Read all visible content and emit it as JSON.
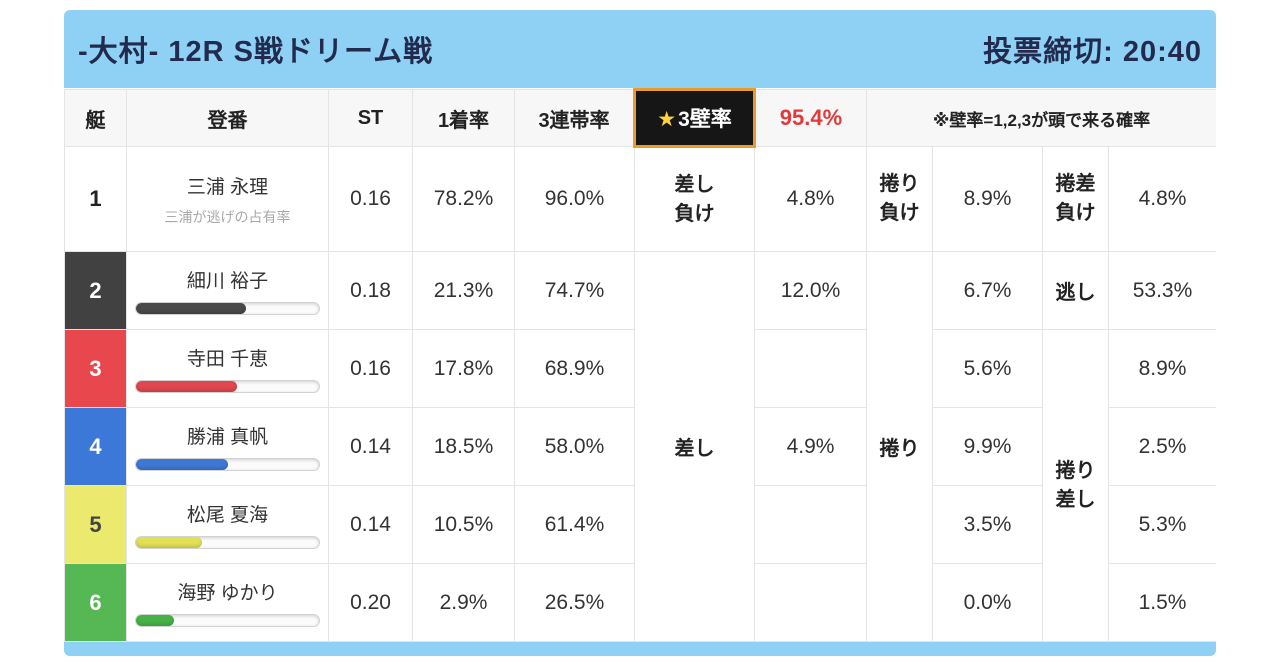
{
  "header": {
    "title": "-大村- 12R S戦ドリーム戦",
    "deadline": "投票締切: 20:40"
  },
  "colors": {
    "card_blue": "#8fd0f5",
    "wall_chip_border": "#e89c2c",
    "wall_chip_bg": "#161616",
    "wall_value_red": "#e03a3a",
    "header_text": "#222b4e"
  },
  "table_header": {
    "boat": "艇",
    "entry": "登番",
    "st": "ST",
    "win": "1着率",
    "top3": "3連帯率",
    "wall_star": "★",
    "wall": "3壁率",
    "wall_value": "95.4%",
    "note": "※壁率=1,2,3が頭で来る確率"
  },
  "merged": {
    "sashi": "差し",
    "makuri": "捲り",
    "makurizashi": "捲り\n差し"
  },
  "rows": [
    {
      "boat": "1",
      "boat_bg": "#ffffff",
      "boat_fg": "#222222",
      "name": "三浦 永理",
      "subtext": "三浦が逃げの占有率",
      "st": "0.16",
      "win": "78.2%",
      "top3": "96.0%",
      "sashi_label": "差し\n負け",
      "sashi": "4.8%",
      "makuri_label": "捲り\n負け",
      "makuri": "8.9%",
      "makurizashi_label": "捲差\n負け",
      "makurizashi": "4.8%"
    },
    {
      "boat": "2",
      "boat_bg": "#414141",
      "boat_fg": "#ffffff",
      "name": "細川 裕子",
      "bar_width": "60%",
      "bar_color": "#4a4a4a",
      "st": "0.18",
      "win": "21.3%",
      "top3": "74.7%",
      "sashi": "12.0%",
      "makuri": "6.7%",
      "nigashi_label": "逃し",
      "makurizashi": "53.3%"
    },
    {
      "boat": "3",
      "boat_bg": "#e8474d",
      "boat_fg": "#ffffff",
      "name": "寺田 千恵",
      "bar_width": "55%",
      "bar_color": "#e0474e",
      "st": "0.16",
      "win": "17.8%",
      "top3": "68.9%",
      "sashi": "",
      "makuri": "5.6%",
      "makurizashi": "8.9%"
    },
    {
      "boat": "4",
      "boat_bg": "#3c78d8",
      "boat_fg": "#ffffff",
      "name": "勝浦 真帆",
      "bar_width": "50%",
      "bar_color": "#3f77d4",
      "st": "0.14",
      "win": "18.5%",
      "top3": "58.0%",
      "sashi": "4.9%",
      "makuri": "9.9%",
      "makurizashi": "2.5%"
    },
    {
      "boat": "5",
      "boat_bg": "#ebe96e",
      "boat_fg": "#444444",
      "name": "松尾 夏海",
      "bar_width": "36%",
      "bar_color": "#e2e055",
      "st": "0.14",
      "win": "10.5%",
      "top3": "61.4%",
      "sashi": "",
      "makuri": "3.5%",
      "makurizashi": "5.3%"
    },
    {
      "boat": "6",
      "boat_bg": "#55b855",
      "boat_fg": "#ffffff",
      "name": "海野 ゆかり",
      "bar_width": "21%",
      "bar_color": "#46b246",
      "st": "0.20",
      "win": "2.9%",
      "top3": "26.5%",
      "sashi": "",
      "makuri": "0.0%",
      "makurizashi": "1.5%"
    }
  ]
}
